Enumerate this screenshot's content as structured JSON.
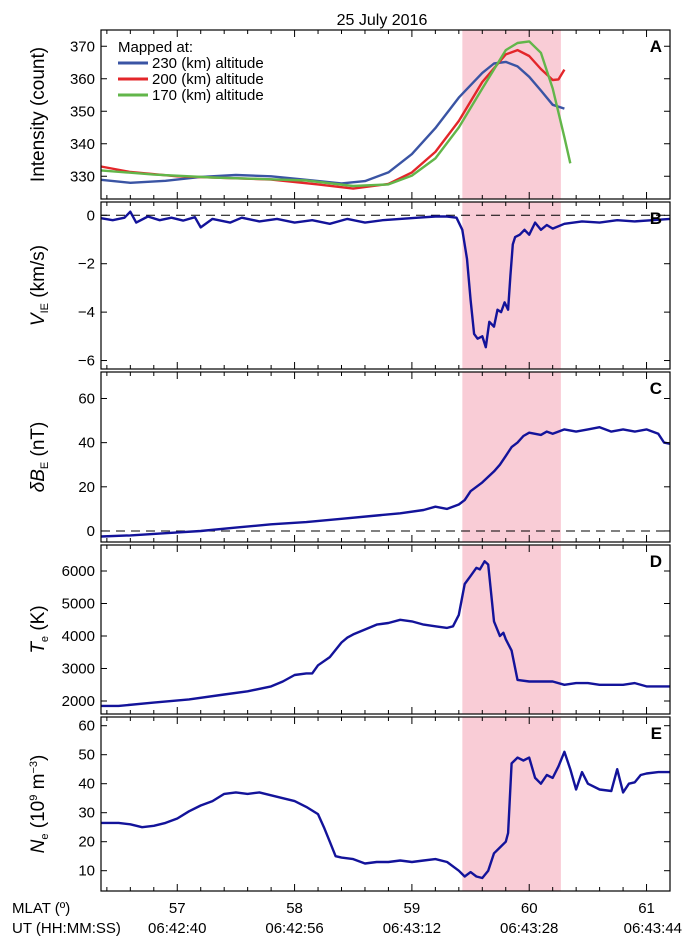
{
  "figure_title": "25 July 2016",
  "colors": {
    "highlight": "#f9ccd6",
    "trace": "#13139a",
    "series_230": "#3a54a4",
    "series_200": "#e3262a",
    "series_170": "#62b64a",
    "zero_line": "#000000"
  },
  "bottom_axis": {
    "mlat_label": "MLAT (º)",
    "ut_label": "UT (HH:MM:SS)",
    "mlat_ticks": [
      "57",
      "58",
      "59",
      "60",
      "61"
    ],
    "ut_ticks": [
      "06:42:40",
      "06:42:56",
      "06:43:12",
      "06:43:28",
      "06:43:44"
    ]
  },
  "chart_data": [
    {
      "id": "A",
      "type": "line",
      "ylabel": "Intensity (count)",
      "xlim": [
        56.35,
        61.2
      ],
      "ylim": [
        323,
        375
      ],
      "yticks": [
        330,
        340,
        350,
        360,
        370
      ],
      "highlight": [
        59.43,
        60.27
      ],
      "legend": {
        "title": "Mapped at:",
        "position": "top-left",
        "entries": [
          "230 (km) altitude",
          "200 (km) altitude",
          "170 (km) altitude"
        ]
      },
      "series": [
        {
          "name": "230 (km) altitude",
          "color": "#3a54a4",
          "x": [
            56.35,
            56.6,
            56.9,
            57.2,
            57.5,
            57.8,
            58.1,
            58.4,
            58.6,
            58.8,
            59.0,
            59.2,
            59.4,
            59.6,
            59.7,
            59.8,
            59.9,
            60.0,
            60.1,
            60.2,
            60.3
          ],
          "y": [
            328.9,
            328.0,
            328.6,
            329.8,
            330.4,
            330.0,
            328.9,
            327.8,
            328.5,
            331.2,
            336.8,
            344.8,
            354.2,
            361.8,
            364.7,
            365.2,
            363.8,
            360.6,
            356.4,
            352.0,
            350.8
          ]
        },
        {
          "name": "200 (km) altitude",
          "color": "#e3262a",
          "x": [
            56.35,
            56.6,
            57.0,
            57.4,
            57.8,
            58.2,
            58.5,
            58.8,
            59.0,
            59.2,
            59.4,
            59.6,
            59.8,
            59.9,
            60.0,
            60.1,
            60.2,
            60.25,
            60.3
          ],
          "y": [
            333.0,
            331.3,
            330.0,
            329.5,
            329.0,
            327.5,
            326.2,
            327.6,
            331.2,
            337.5,
            347.0,
            359.0,
            367.5,
            368.8,
            367.0,
            363.0,
            359.6,
            359.8,
            362.8
          ]
        },
        {
          "name": "170 (km) altitude",
          "color": "#62b64a",
          "x": [
            56.35,
            56.8,
            57.3,
            57.7,
            58.1,
            58.5,
            58.8,
            59.0,
            59.2,
            59.4,
            59.6,
            59.8,
            59.9,
            60.0,
            60.1,
            60.2,
            60.3,
            60.35
          ],
          "y": [
            331.8,
            330.5,
            329.6,
            329.2,
            328.7,
            327.0,
            327.5,
            330.2,
            335.5,
            345.0,
            357.0,
            368.8,
            371.0,
            371.5,
            368.0,
            357.0,
            342.0,
            334.0
          ]
        }
      ]
    },
    {
      "id": "B",
      "type": "line",
      "ylabel_symbol": "V",
      "ylabel_sub": "IE",
      "ylabel_unit": " (km/s)",
      "xlim": [
        56.35,
        61.2
      ],
      "ylim": [
        -6.35,
        0.55
      ],
      "yticks": [
        -6,
        -4,
        -2,
        0
      ],
      "zero_line": 0,
      "highlight": [
        59.43,
        60.27
      ],
      "series": [
        {
          "name": "",
          "color": "#13139a",
          "x": [
            56.35,
            56.45,
            56.55,
            56.6,
            56.65,
            56.75,
            56.85,
            56.95,
            57.05,
            57.15,
            57.2,
            57.3,
            57.45,
            57.55,
            57.7,
            57.85,
            58.0,
            58.15,
            58.3,
            58.45,
            58.6,
            58.75,
            58.9,
            59.05,
            59.2,
            59.3,
            59.38,
            59.43,
            59.47,
            59.5,
            59.53,
            59.56,
            59.6,
            59.63,
            59.66,
            59.7,
            59.73,
            59.76,
            59.79,
            59.82,
            59.84,
            59.86,
            59.88,
            59.92,
            59.96,
            60.0,
            60.05,
            60.1,
            60.15,
            60.2,
            60.3,
            60.45,
            60.6,
            60.75,
            60.9,
            61.05,
            61.2
          ],
          "y": [
            -0.12,
            -0.2,
            -0.1,
            0.15,
            -0.3,
            -0.05,
            -0.2,
            -0.1,
            -0.22,
            -0.08,
            -0.5,
            -0.15,
            -0.3,
            -0.1,
            -0.25,
            -0.15,
            -0.3,
            -0.2,
            -0.35,
            -0.15,
            -0.3,
            -0.2,
            -0.15,
            -0.1,
            -0.05,
            -0.05,
            -0.1,
            -0.6,
            -1.8,
            -3.5,
            -4.9,
            -5.1,
            -5.0,
            -5.45,
            -4.4,
            -4.6,
            -3.9,
            -4.0,
            -3.6,
            -3.9,
            -2.5,
            -1.2,
            -0.9,
            -0.8,
            -0.6,
            -0.8,
            -0.3,
            -0.6,
            -0.4,
            -0.55,
            -0.35,
            -0.25,
            -0.3,
            -0.2,
            -0.25,
            -0.2,
            -0.15
          ]
        }
      ]
    },
    {
      "id": "C",
      "type": "line",
      "ylabel_symbol": "δB",
      "ylabel_sub": "E",
      "ylabel_unit": " (nT)",
      "xlim": [
        56.35,
        61.2
      ],
      "ylim": [
        -5,
        72
      ],
      "yticks": [
        0,
        20,
        40,
        60
      ],
      "zero_line": 0,
      "highlight": [
        59.43,
        60.27
      ],
      "series": [
        {
          "name": "",
          "color": "#13139a",
          "x": [
            56.35,
            56.6,
            56.9,
            57.2,
            57.5,
            57.8,
            58.1,
            58.4,
            58.7,
            58.9,
            59.1,
            59.2,
            59.3,
            59.4,
            59.45,
            59.5,
            59.6,
            59.7,
            59.75,
            59.8,
            59.85,
            59.9,
            59.95,
            60.0,
            60.05,
            60.1,
            60.15,
            60.2,
            60.3,
            60.4,
            60.5,
            60.6,
            60.7,
            60.8,
            60.9,
            61.0,
            61.1,
            61.15,
            61.2
          ],
          "y": [
            -2.5,
            -2,
            -1,
            0,
            1.5,
            3,
            4,
            5.5,
            7,
            8,
            9.5,
            11,
            10,
            12,
            14,
            18,
            22,
            27,
            30,
            34,
            38,
            40,
            43,
            44.5,
            44,
            43.5,
            45,
            44,
            46,
            45,
            46,
            47,
            45,
            46,
            45,
            46,
            44,
            40,
            39.5
          ]
        }
      ]
    },
    {
      "id": "D",
      "type": "line",
      "ylabel_symbol": "T",
      "ylabel_sub": "e",
      "ylabel_unit": " (K)",
      "xlim": [
        56.35,
        61.2
      ],
      "ylim": [
        1600,
        6800
      ],
      "yticks": [
        2000,
        3000,
        4000,
        5000,
        6000
      ],
      "highlight": [
        59.43,
        60.27
      ],
      "series": [
        {
          "name": "",
          "color": "#13139a",
          "x": [
            56.35,
            56.5,
            56.8,
            57.1,
            57.4,
            57.6,
            57.8,
            57.9,
            58.0,
            58.1,
            58.15,
            58.2,
            58.3,
            58.4,
            58.45,
            58.5,
            58.6,
            58.7,
            58.8,
            58.9,
            59.0,
            59.1,
            59.2,
            59.3,
            59.35,
            59.4,
            59.45,
            59.5,
            59.55,
            59.58,
            59.62,
            59.65,
            59.7,
            59.75,
            59.78,
            59.8,
            59.85,
            59.9,
            60.0,
            60.1,
            60.2,
            60.3,
            60.4,
            60.5,
            60.6,
            60.7,
            60.8,
            60.9,
            61.0,
            61.1,
            61.2
          ],
          "y": [
            1850,
            1850,
            1950,
            2050,
            2200,
            2300,
            2450,
            2600,
            2800,
            2850,
            2850,
            3100,
            3350,
            3800,
            3950,
            4050,
            4200,
            4350,
            4400,
            4500,
            4450,
            4350,
            4300,
            4250,
            4300,
            4650,
            5600,
            5850,
            6100,
            6050,
            6300,
            6200,
            4450,
            4000,
            4100,
            3900,
            3550,
            2650,
            2600,
            2600,
            2600,
            2500,
            2550,
            2550,
            2500,
            2500,
            2500,
            2550,
            2450,
            2450,
            2450
          ]
        }
      ]
    },
    {
      "id": "E",
      "type": "line",
      "ylabel_symbol": "N",
      "ylabel_sub": "e",
      "ylabel_unit_pre": " (10",
      "ylabel_unit_sup": "9",
      "ylabel_unit_post": " m",
      "ylabel_unit_sup2": "−3",
      "ylabel_unit_end": ")",
      "xlim": [
        56.35,
        61.2
      ],
      "ylim": [
        3,
        63
      ],
      "yticks": [
        10,
        20,
        30,
        40,
        50,
        60
      ],
      "highlight": [
        59.43,
        60.27
      ],
      "series": [
        {
          "name": "",
          "color": "#13139a",
          "x": [
            56.35,
            56.5,
            56.6,
            56.7,
            56.8,
            56.9,
            57.0,
            57.1,
            57.2,
            57.3,
            57.4,
            57.5,
            57.6,
            57.7,
            57.8,
            57.9,
            58.0,
            58.1,
            58.2,
            58.25,
            58.3,
            58.35,
            58.4,
            58.5,
            58.6,
            58.7,
            58.8,
            58.9,
            59.0,
            59.1,
            59.2,
            59.3,
            59.4,
            59.45,
            59.5,
            59.55,
            59.6,
            59.65,
            59.7,
            59.75,
            59.8,
            59.82,
            59.85,
            59.9,
            59.95,
            60.0,
            60.05,
            60.1,
            60.15,
            60.2,
            60.25,
            60.3,
            60.35,
            60.4,
            60.45,
            60.5,
            60.6,
            60.7,
            60.75,
            60.8,
            60.85,
            60.9,
            60.95,
            61.0,
            61.1,
            61.2
          ],
          "y": [
            26.5,
            26.5,
            26.0,
            25.0,
            25.5,
            26.5,
            28.0,
            30.5,
            32.5,
            34.0,
            36.5,
            37.0,
            36.5,
            37.0,
            36.0,
            35.0,
            34.0,
            32.0,
            29.5,
            25.0,
            20.0,
            15.0,
            14.5,
            14.0,
            12.5,
            13.0,
            13.0,
            13.5,
            13.0,
            13.5,
            14.0,
            13.0,
            10.0,
            8.0,
            9.5,
            8.0,
            7.5,
            10.0,
            16.0,
            18.0,
            20.0,
            23.0,
            47.0,
            49.0,
            48.0,
            49.0,
            42.0,
            40.0,
            43.0,
            42.0,
            46.0,
            51.0,
            45.0,
            38.0,
            44.0,
            40.0,
            38.0,
            37.5,
            45.0,
            37.0,
            40.0,
            40.5,
            43.0,
            43.5,
            44.0,
            44.0
          ]
        }
      ]
    }
  ]
}
